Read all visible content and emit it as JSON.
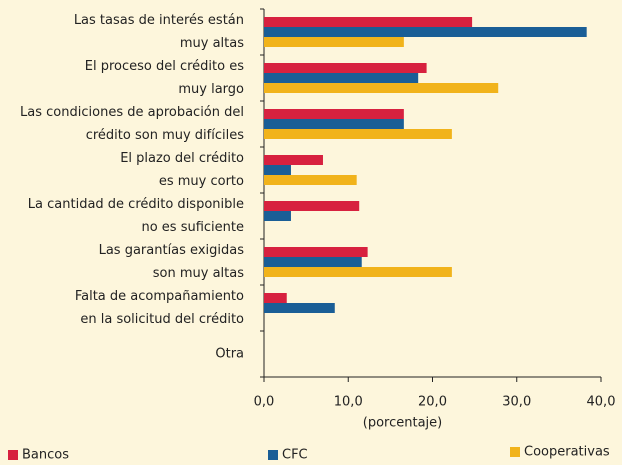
{
  "chart_data": {
    "type": "hbar",
    "categories": [
      [
        "Las tasas de interés están",
        "muy altas"
      ],
      [
        "El proceso del crédito es",
        "muy largo"
      ],
      [
        "Las condiciones de aprobación del",
        "crédito son muy difíciles"
      ],
      [
        "El plazo del crédito",
        "es muy corto"
      ],
      [
        "La cantidad de crédito disponible",
        "no es suficiente"
      ],
      [
        "Las garantías exigidas",
        "son muy altas"
      ],
      [
        "Falta de acompañamiento",
        "en la solicitud del crédito"
      ],
      [
        "Otra"
      ]
    ],
    "series": [
      {
        "name": "Bancos",
        "color": "#d7213f",
        "values": [
          24.7,
          19.3,
          16.6,
          7.0,
          11.3,
          12.3,
          2.7,
          null
        ]
      },
      {
        "name": "CFC",
        "color": "#1a5e96",
        "values": [
          38.3,
          18.3,
          16.6,
          3.2,
          3.2,
          11.6,
          8.4,
          null
        ]
      },
      {
        "name": "Cooperativas",
        "color": "#f1b31b",
        "values": [
          16.6,
          27.8,
          22.3,
          11.0,
          null,
          22.3,
          null,
          null
        ]
      }
    ],
    "xlim": [
      0,
      40
    ],
    "xticks": [
      {
        "value": 0,
        "label": "0,0"
      },
      {
        "value": 10,
        "label": "10,0"
      },
      {
        "value": 20,
        "label": "20,0"
      },
      {
        "value": 30,
        "label": "30,0"
      },
      {
        "value": 40,
        "label": "40,0"
      }
    ],
    "xlabel": "(porcentaje)"
  }
}
